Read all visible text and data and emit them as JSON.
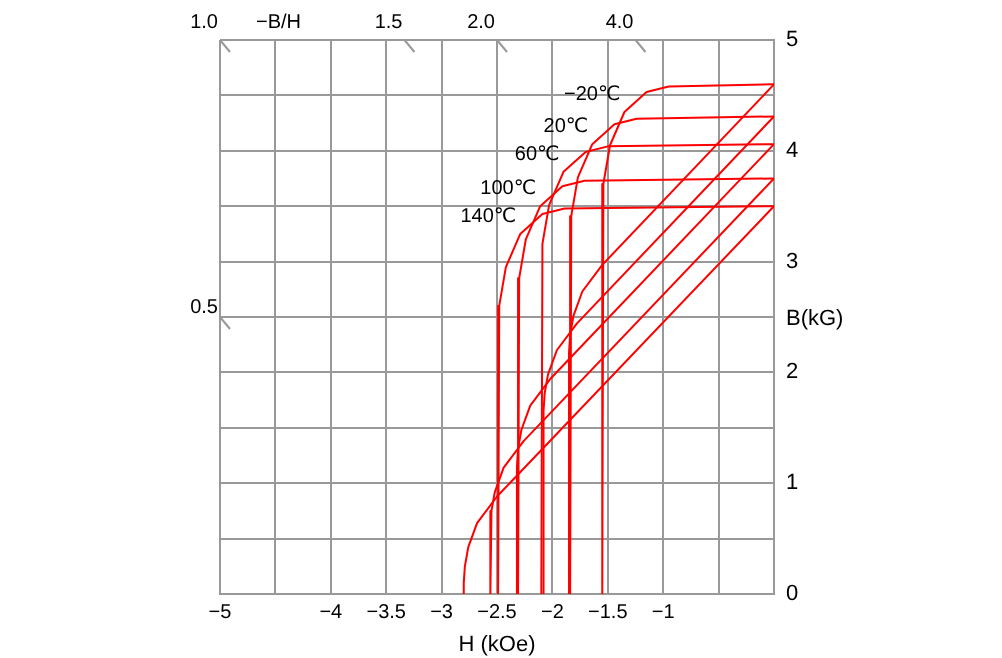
{
  "chart_data": {
    "type": "line",
    "xlabel": "H (kOe)",
    "ylabel": "B(kG)",
    "xlim": [
      -5,
      0
    ],
    "ylim": [
      0,
      5
    ],
    "xticks": [
      {
        "value": -5,
        "label": "−5"
      },
      {
        "value": -4.5,
        "label": null
      },
      {
        "value": -4,
        "label": "−4"
      },
      {
        "value": -3.5,
        "label": "−3.5"
      },
      {
        "value": -3,
        "label": "−3"
      },
      {
        "value": -2.5,
        "label": "−2.5"
      },
      {
        "value": -2,
        "label": "−2"
      },
      {
        "value": -1.5,
        "label": "−1.5"
      },
      {
        "value": -1,
        "label": "−1"
      },
      {
        "value": -0.5,
        "label": null
      },
      {
        "value": 0,
        "label": null
      }
    ],
    "yticks": [
      0,
      {
        "value": 0.5,
        "label": null
      },
      1,
      {
        "value": 1.5,
        "label": null
      },
      2,
      {
        "value": 2.5,
        "label": null
      },
      3,
      {
        "value": 3.5,
        "label": null
      },
      4,
      {
        "value": 4.5,
        "label": null
      },
      5
    ],
    "grid": true,
    "legend": false,
    "marker": "none",
    "line_style": "solid",
    "annotations": [
      "−B/H",
      "1.0",
      "1.5",
      "2.0",
      "4.0",
      "0.5"
    ],
    "series": [
      {
        "name": "−20℃",
        "color": "#ff0000",
        "x": [
          0,
          -0.95,
          -1.15,
          -1.35,
          -1.48,
          -1.54,
          -1.55
        ],
        "values": [
          4.6,
          4.58,
          4.53,
          4.35,
          4.05,
          3.7,
          0
        ]
      },
      {
        "name": "20℃",
        "color": "#ff0000",
        "x": [
          0,
          -1.24,
          -1.44,
          -1.64,
          -1.77,
          -1.83,
          -1.84
        ],
        "values": [
          4.31,
          4.29,
          4.24,
          4.06,
          3.76,
          3.41,
          0
        ]
      },
      {
        "name": "60℃",
        "color": "#ff0000",
        "x": [
          0,
          -1.5,
          -1.7,
          -1.9,
          -2.03,
          -2.09,
          -2.1
        ],
        "values": [
          4.06,
          4.04,
          3.99,
          3.81,
          3.51,
          3.16,
          0
        ]
      },
      {
        "name": "100℃",
        "color": "#ff0000",
        "x": [
          0,
          -1.71,
          -1.91,
          -2.11,
          -2.24,
          -2.3,
          -2.31
        ],
        "values": [
          3.75,
          3.73,
          3.68,
          3.5,
          3.2,
          2.85,
          0
        ]
      },
      {
        "name": "140℃",
        "color": "#ff0000",
        "x": [
          0,
          -1.89,
          -2.09,
          -2.29,
          -2.42,
          -2.48,
          -2.49
        ],
        "values": [
          3.5,
          3.48,
          3.43,
          3.25,
          2.95,
          2.6,
          0
        ]
      },
      {
        "color": "#ff0000",
        "x": [
          0,
          -1.55,
          -1.73,
          -1.81,
          -1.84,
          -1.85,
          -1.85
        ],
        "values": [
          4.6,
          2.97,
          2.73,
          2.51,
          2.34,
          2.18,
          0
        ]
      },
      {
        "color": "#ff0000",
        "x": [
          0,
          -1.78,
          -1.96,
          -2.04,
          -2.07,
          -2.08,
          -2.08
        ],
        "values": [
          4.31,
          2.44,
          2.2,
          1.98,
          1.81,
          1.65,
          0
        ]
      },
      {
        "color": "#ff0000",
        "x": [
          0,
          -2.02,
          -2.2,
          -2.28,
          -2.31,
          -2.32,
          -2.32
        ],
        "values": [
          4.06,
          1.94,
          1.7,
          1.48,
          1.31,
          1.15,
          0
        ]
      },
      {
        "color": "#ff0000",
        "x": [
          0,
          -2.26,
          -2.44,
          -2.52,
          -2.55,
          -2.56
        ],
        "values": [
          3.75,
          1.38,
          1.14,
          0.92,
          0.75,
          0
        ]
      },
      {
        "color": "#ff0000",
        "x": [
          0,
          -2.5,
          -2.68,
          -2.76,
          -2.79,
          -2.8,
          -2.8
        ],
        "values": [
          3.5,
          0.88,
          0.64,
          0.42,
          0.25,
          0.1,
          0
        ]
      }
    ]
  }
}
